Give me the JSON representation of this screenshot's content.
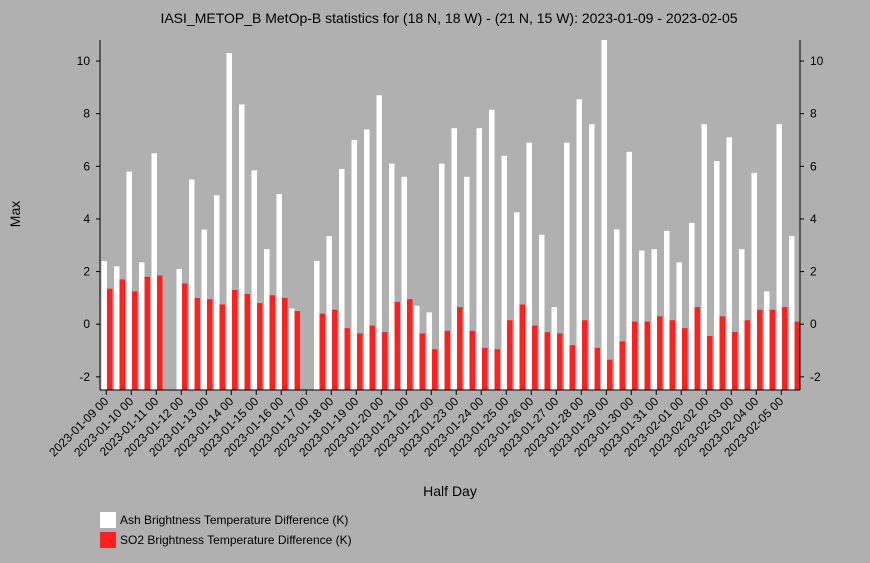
{
  "chart_data": {
    "type": "bar",
    "title": "IASI_METOP_B MetOp-B statistics for (18 N, 18 W) - (21 N, 15 W): 2023-01-09 - 2023-02-05",
    "xlabel": "Half Day",
    "ylabel": "Max",
    "ylim": [
      -2.5,
      10.8
    ],
    "y_ticks": [
      -2,
      0,
      2,
      4,
      6,
      8,
      10
    ],
    "x_tick_labels": [
      "2023-01-09 00",
      "2023-01-10 00",
      "2023-01-11 00",
      "2023-01-12 00",
      "2023-01-13 00",
      "2023-01-14 00",
      "2023-01-15 00",
      "2023-01-16 00",
      "2023-01-17 00",
      "2023-01-18 00",
      "2023-01-19 00",
      "2023-01-20 00",
      "2023-01-21 00",
      "2023-01-22 00",
      "2023-01-23 00",
      "2023-01-24 00",
      "2023-01-25 00",
      "2023-01-26 00",
      "2023-01-27 00",
      "2023-01-28 00",
      "2023-01-29 00",
      "2023-01-30 00",
      "2023-01-31 00",
      "2023-02-01 00",
      "2023-02-02 00",
      "2023-02-03 00",
      "2023-02-04 00",
      "2023-02-05 00"
    ],
    "legend_position": "bottom-left",
    "grid": false,
    "series": [
      {
        "name": "Ash Brightness Temperature Difference (K)",
        "color": "#ffffff",
        "values": [
          2.4,
          2.2,
          5.8,
          2.35,
          6.5,
          null,
          2.1,
          5.5,
          3.6,
          4.9,
          10.3,
          8.35,
          5.85,
          2.85,
          4.95,
          0.6,
          null,
          2.4,
          3.35,
          5.9,
          7.0,
          7.4,
          8.7,
          6.1,
          5.6,
          0.7,
          0.45,
          6.1,
          7.45,
          5.6,
          7.45,
          8.15,
          6.4,
          4.25,
          6.9,
          3.4,
          0.65,
          6.9,
          8.55,
          7.6,
          10.8,
          3.6,
          6.55,
          2.8,
          2.85,
          3.55,
          2.35,
          3.85,
          7.6,
          6.2,
          7.1,
          2.85,
          5.75,
          1.25,
          7.6,
          3.35
        ]
      },
      {
        "name": "SO2 Brightness Temperature Difference (K)",
        "color": "#ff2020",
        "values": [
          1.35,
          1.7,
          1.25,
          1.8,
          1.85,
          null,
          1.55,
          1.0,
          0.95,
          0.75,
          1.3,
          1.15,
          0.8,
          1.1,
          1.0,
          0.5,
          null,
          0.4,
          0.55,
          -0.15,
          -0.35,
          -0.05,
          -0.3,
          0.85,
          0.95,
          -0.35,
          -0.95,
          -0.25,
          0.65,
          -0.25,
          -0.9,
          -0.95,
          0.15,
          0.75,
          -0.05,
          -0.3,
          -0.35,
          -0.8,
          0.15,
          -0.9,
          -1.35,
          -0.65,
          0.1,
          0.1,
          0.3,
          0.15,
          -0.15,
          0.65,
          -0.45,
          0.3,
          -0.3,
          0.15,
          0.55,
          0.55,
          0.65,
          0.1
        ]
      }
    ]
  }
}
